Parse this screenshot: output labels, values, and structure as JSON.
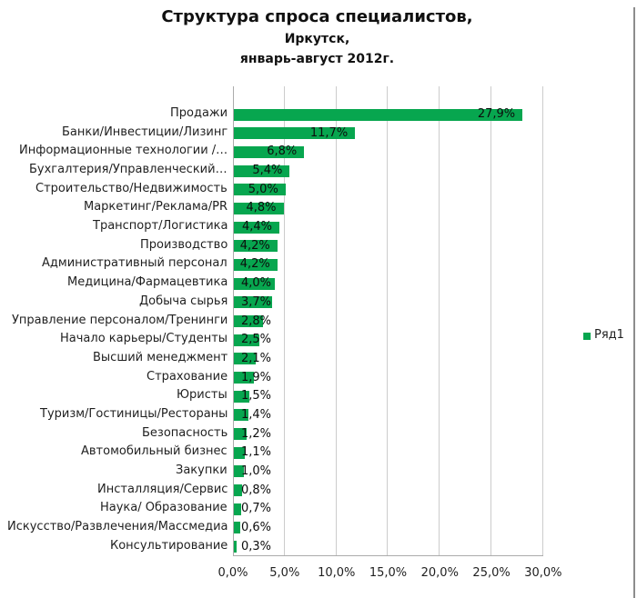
{
  "title": {
    "line1": "Структура спроса специалистов,",
    "line2": "Иркутск,",
    "line3": "январь-август 2012г."
  },
  "legend": {
    "label": "Ряд1"
  },
  "colors": {
    "bar": "#07a64f",
    "grid": "#cccccc",
    "axis": "#ababab",
    "text": "#1f1f1f"
  },
  "chart_data": {
    "type": "bar",
    "orientation": "horizontal",
    "title": "Структура спроса специалистов, Иркутск, январь-август 2012г.",
    "categories": [
      "Продажи",
      "Банки/Инвестиции/Лизинг",
      "Информационные технологии /…",
      "Бухгалтерия/Управленческий…",
      "Строительство/Недвижимость",
      "Маркетинг/Реклама/PR",
      "Транспорт/Логистика",
      "Производство",
      "Административный персонал",
      "Медицина/Фармацевтика",
      "Добыча сырья",
      "Управление персоналом/Тренинги",
      "Начало карьеры/Студенты",
      "Высший менеджмент",
      "Страхование",
      "Юристы",
      "Туризм/Гостиницы/Рестораны",
      "Безопасность",
      "Автомобильный бизнес",
      "Закупки",
      "Инсталляция/Сервис",
      "Наука/ Образование",
      "Искусство/Развлечения/Массмедиа",
      "Консультирование"
    ],
    "values": [
      27.9,
      11.7,
      6.8,
      5.4,
      5.0,
      4.8,
      4.4,
      4.2,
      4.2,
      4.0,
      3.7,
      2.8,
      2.5,
      2.1,
      1.9,
      1.5,
      1.4,
      1.2,
      1.1,
      1.0,
      0.8,
      0.7,
      0.6,
      0.3
    ],
    "value_labels": [
      "27,9%",
      "11,7%",
      "6,8%",
      "5,4%",
      "5,0%",
      "4,8%",
      "4,4%",
      "4,2%",
      "4,2%",
      "4,0%",
      "3,7%",
      "2,8%",
      "2,5%",
      "2,1%",
      "1,9%",
      "1,5%",
      "1,4%",
      "1,2%",
      "1,1%",
      "1,0%",
      "0,8%",
      "0,7%",
      "0,6%",
      "0,3%"
    ],
    "xlim": [
      0,
      30
    ],
    "x_tick_labels": [
      "0,0%",
      "5,0%",
      "10,0%",
      "15,0%",
      "20,0%",
      "25,0%",
      "30,0%"
    ],
    "x_tick_values": [
      0,
      5,
      10,
      15,
      20,
      25,
      30
    ],
    "series_name": "Ряд1",
    "grid": true,
    "legend_position": "right"
  }
}
